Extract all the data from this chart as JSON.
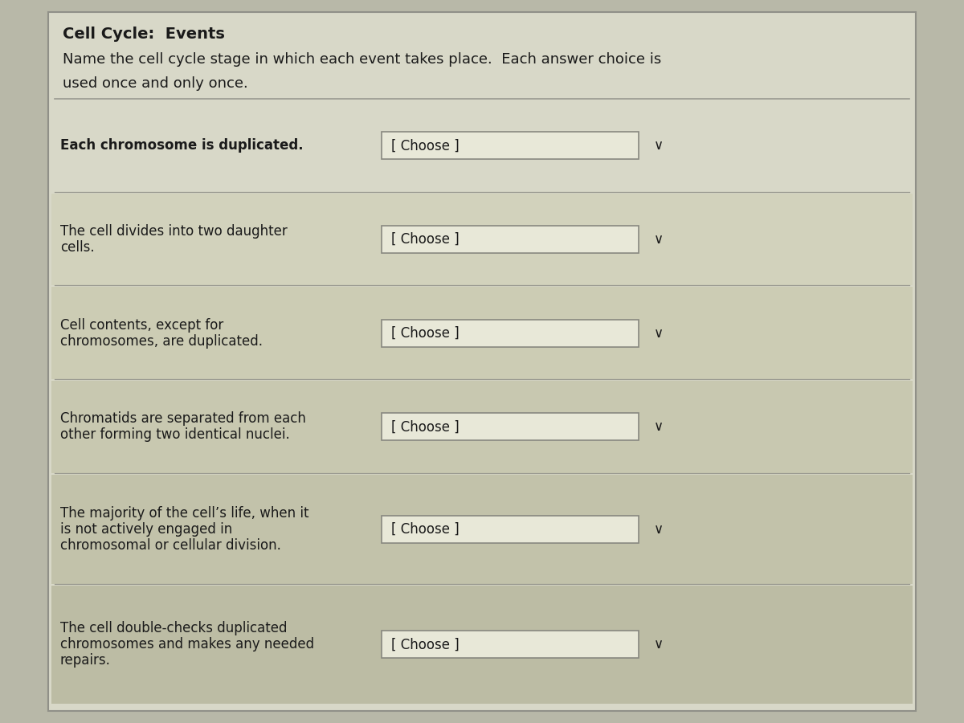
{
  "title": "Cell Cycle:  Events",
  "subtitle_line1": "Name the cell cycle stage in which each event takes place.  Each answer choice is",
  "subtitle_line2": "used once and only once.",
  "bg_color": "#b8b8a8",
  "panel_color": "#d8d8c8",
  "header_bg": "#d0d0c0",
  "choose_box_color": "#e8e8d8",
  "choose_box_border": "#888880",
  "choose_text": "[ Choose ]",
  "divider_color": "#999990",
  "text_color": "#1a1a1a",
  "rows": [
    {
      "lines": [
        "Each chromosome is duplicated."
      ],
      "bold": true,
      "row_bg": "#d8d8c8"
    },
    {
      "lines": [
        "The cell divides into two daughter",
        "cells."
      ],
      "bold": false,
      "row_bg": "#d4d4b8"
    },
    {
      "lines": [
        "Cell contents, except for",
        "chromosomes, are duplicated."
      ],
      "bold": false,
      "row_bg": "#ccccb0"
    },
    {
      "lines": [
        "Chromatids are separated from each",
        "other forming two identical nuclei."
      ],
      "bold": false,
      "row_bg": "#c8c8ac"
    },
    {
      "lines": [
        "The majority of the cell’s life, when it",
        "is not actively engaged in",
        "chromosomal or cellular division."
      ],
      "bold": false,
      "row_bg": "#c4c4a8"
    },
    {
      "lines": [
        "The cell double-checks duplicated",
        "chromosomes and makes any needed",
        "repairs."
      ],
      "bold": false,
      "row_bg": "#c0c0a4"
    }
  ],
  "title_fontsize": 14,
  "subtitle_fontsize": 13,
  "row_fontsize": 12,
  "choose_fontsize": 12
}
